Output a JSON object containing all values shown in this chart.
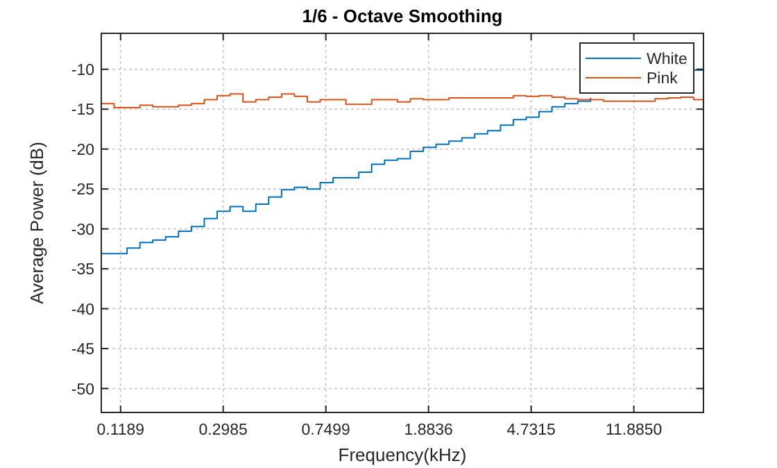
{
  "chart_data": {
    "type": "step",
    "title": "1/6 - Octave Smoothing",
    "xlabel": "Frequency(kHz)",
    "ylabel": "Average Power (dB)",
    "log": "x",
    "x": [
      0.1,
      0.1122,
      0.126,
      0.1414,
      0.1587,
      0.1782,
      0.2,
      0.2245,
      0.252,
      0.2828,
      0.3175,
      0.3564,
      0.4,
      0.449,
      0.504,
      0.5657,
      0.635,
      0.7127,
      0.8,
      0.898,
      1.008,
      1.131,
      1.27,
      1.425,
      1.6,
      1.796,
      2.016,
      2.263,
      2.54,
      2.851,
      3.2,
      3.592,
      4.032,
      4.525,
      5.08,
      5.702,
      6.4,
      7.184,
      8.063,
      9.051,
      10.16,
      11.4,
      12.8,
      14.37,
      16.13,
      18.1,
      20.32,
      22.2
    ],
    "series": [
      {
        "name": "White",
        "color": "#0072bd",
        "values": [
          -33.1,
          -33.1,
          -32.4,
          -31.7,
          -31.4,
          -31.0,
          -30.3,
          -29.7,
          -28.7,
          -27.8,
          -27.2,
          -27.8,
          -26.9,
          -26.0,
          -25.1,
          -24.8,
          -25.0,
          -24.2,
          -23.6,
          -23.6,
          -22.9,
          -21.9,
          -21.4,
          -21.2,
          -20.3,
          -19.8,
          -19.4,
          -19.0,
          -18.6,
          -18.1,
          -17.7,
          -17.0,
          -16.3,
          -16.0,
          -15.3,
          -14.7,
          -14.3,
          -14.0,
          -13.6,
          null,
          null,
          null,
          null,
          null,
          null,
          null,
          -10.1,
          -10.1
        ]
      },
      {
        "name": "Pink",
        "color": "#d95319",
        "values": [
          -14.3,
          -14.8,
          -14.8,
          -14.5,
          -14.7,
          -14.7,
          -14.5,
          -14.3,
          -13.8,
          -13.3,
          -13.1,
          -14.1,
          -13.8,
          -13.5,
          -13.1,
          -13.4,
          -14.1,
          -13.8,
          -13.8,
          -14.4,
          -14.4,
          -13.8,
          -13.8,
          -14.1,
          -13.7,
          -13.8,
          -13.8,
          -13.6,
          -13.6,
          -13.6,
          -13.6,
          -13.6,
          -13.3,
          -13.4,
          -13.3,
          -13.5,
          -13.7,
          -13.8,
          -13.8,
          -14.0,
          -14.0,
          -14.0,
          -14.0,
          -13.7,
          -13.6,
          -13.5,
          -13.8,
          -13.8
        ]
      }
    ],
    "xlim": [
      0.1,
      22.2
    ],
    "xticks": [
      0.1189,
      0.2985,
      0.7499,
      1.8836,
      4.7315,
      {
        "value": 11.885,
        "label": "11.8850"
      }
    ],
    "ylim": [
      -53,
      -5.5
    ],
    "yticks": [
      -50,
      -45,
      -40,
      -35,
      -30,
      -25,
      -20,
      -15,
      -10
    ],
    "grid": true,
    "legend": "top right",
    "line_style": "solid"
  }
}
